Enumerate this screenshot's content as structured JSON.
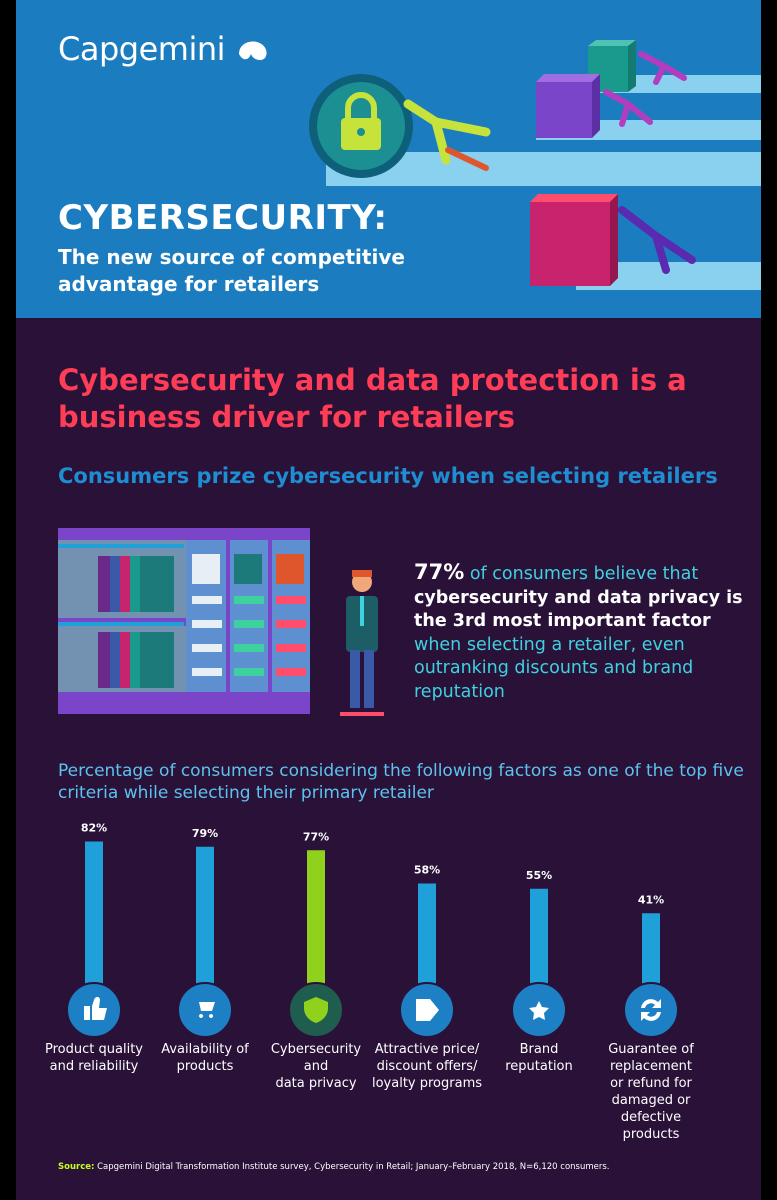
{
  "brand": {
    "logo_text": "Capgemini"
  },
  "header": {
    "title": "CYBERSECURITY:",
    "subtitle": "The new source of competitive advantage for retailers"
  },
  "section": {
    "heading": "Cybersecurity and data protection is a business driver for retailers",
    "subheading": "Consumers prize cybersecurity when selecting retailers"
  },
  "stat": {
    "percent": "77%",
    "text_1": "of consumers believe that",
    "text_bold": "cybersecurity and data privacy is the 3rd most important factor",
    "text_2": "when selecting a retailer, even outranking discounts and brand reputation"
  },
  "chart_caption": "Percentage of consumers considering the following factors as one of the top five criteria while selecting their primary retailer",
  "chart_data": {
    "type": "bar",
    "categories": [
      "Product quality and reliability",
      "Availability of products",
      "Cybersecurity and data privacy",
      "Attractive price/ discount offers/ loyalty programs",
      "Brand reputation",
      "Guarantee of replacement or refund for damaged or defective products"
    ],
    "category_lines": [
      [
        "Product quality",
        "and reliability"
      ],
      [
        "Availability of",
        "products"
      ],
      [
        "Cybersecurity",
        "and",
        "data privacy"
      ],
      [
        "Attractive price/",
        "discount offers/",
        "loyalty programs"
      ],
      [
        "Brand",
        "reputation"
      ],
      [
        "Guarantee of",
        "replacement",
        "or refund for",
        "damaged or",
        "defective",
        "products"
      ]
    ],
    "values": [
      82,
      79,
      77,
      58,
      55,
      41
    ],
    "value_labels": [
      "82%",
      "79%",
      "77%",
      "58%",
      "55%",
      "41%"
    ],
    "icons": [
      "thumbs-up-icon",
      "cart-icon",
      "shield-icon",
      "price-tag-icon",
      "star-badge-icon",
      "refresh-arrows-icon"
    ],
    "highlight_index": 2,
    "ylim": [
      0,
      100
    ],
    "colors": {
      "bar": "#1fa0d8",
      "highlight": "#8fd11c",
      "icon_bg": "#1d7fc4",
      "highlight_icon_bg": "#1f5d4e"
    }
  },
  "source": {
    "label": "Source:",
    "text": "Capgemini Digital Transformation Institute survey, Cybersecurity in Retail; January–February 2018, N=6,120 consumers."
  },
  "colors": {
    "header_bg": "#1b7dc0",
    "body_bg": "#2a1138",
    "accent_red": "#ff3d57",
    "accent_blue": "#1d8ed1",
    "accent_cyan": "#3ed1e0",
    "accent_green": "#c4ff1f"
  }
}
